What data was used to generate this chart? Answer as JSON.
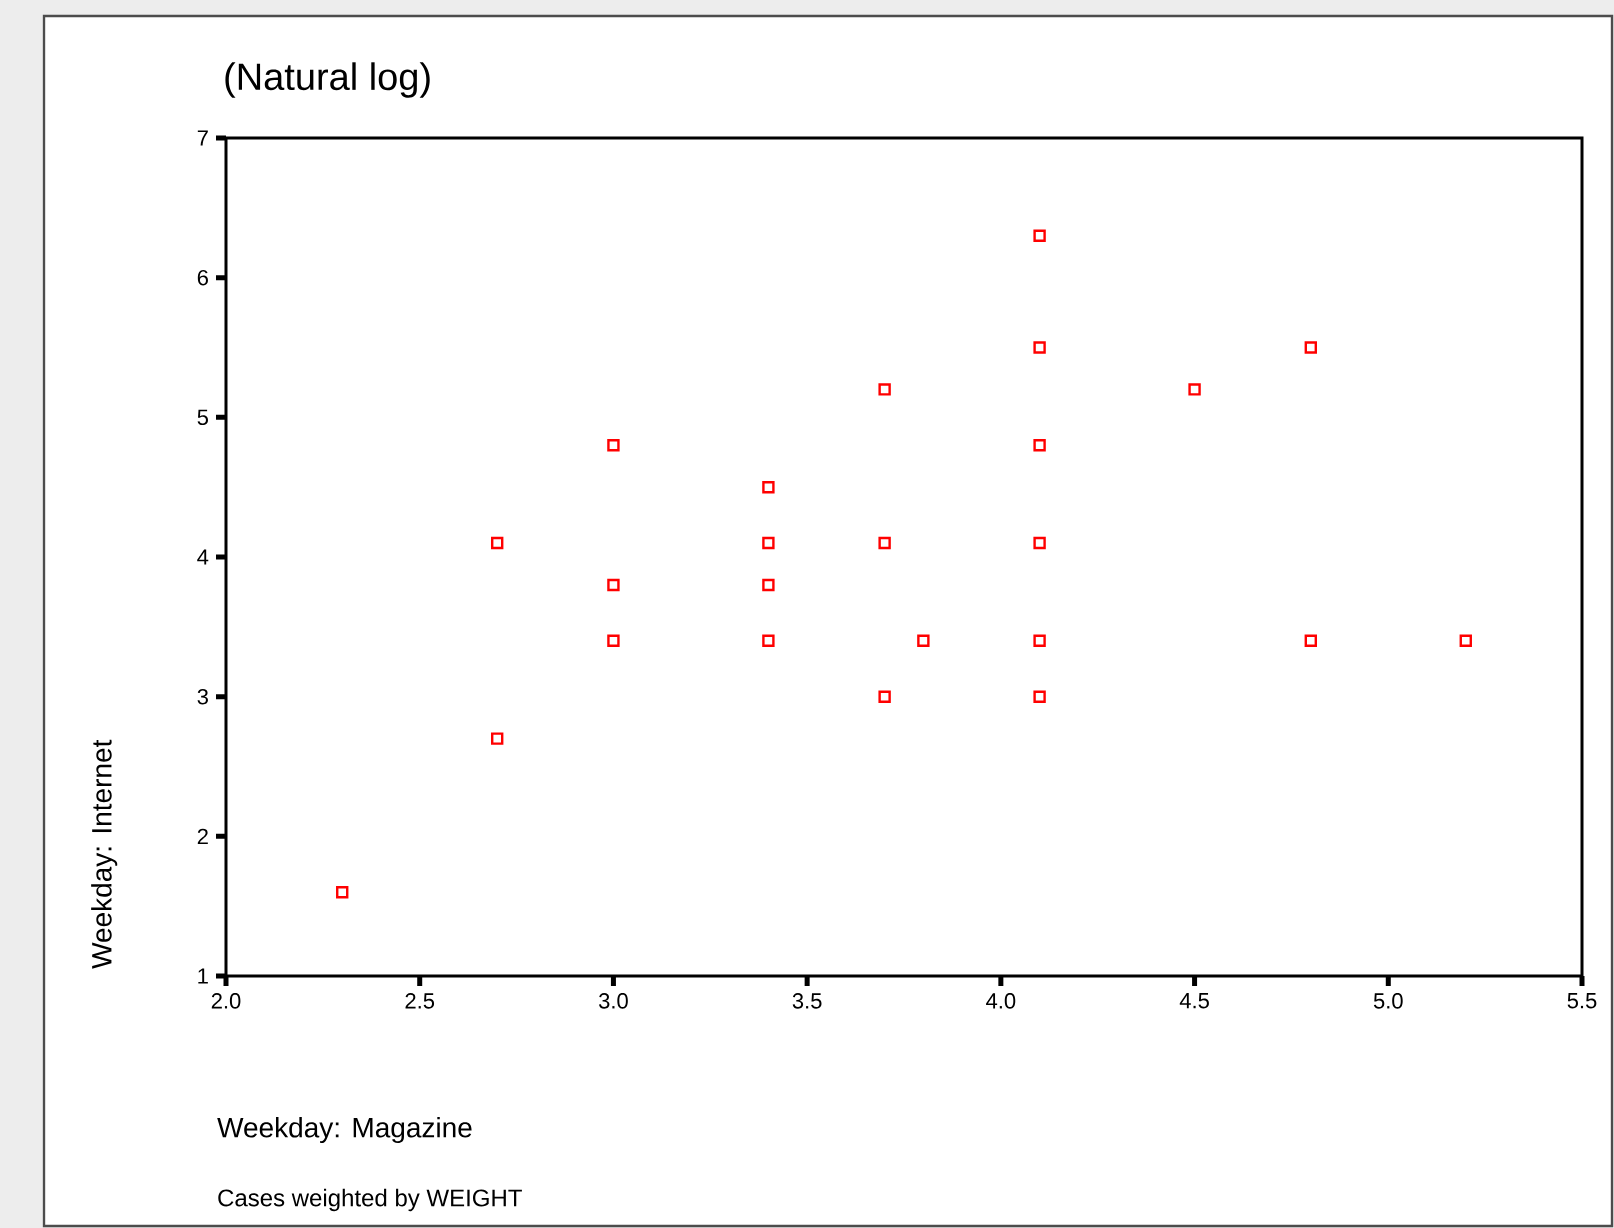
{
  "chart_data": {
    "type": "scatter",
    "title": "(Natural log)",
    "xlabel": "Weekday: Magazine",
    "ylabel": "Weekday: Internet",
    "annotations": [
      "Cases weighted by WEIGHT"
    ],
    "x": [
      2.3,
      2.7,
      2.7,
      3.0,
      3.0,
      3.0,
      3.4,
      3.4,
      3.4,
      3.4,
      3.7,
      3.7,
      3.7,
      3.8,
      4.1,
      4.1,
      4.1,
      4.1,
      4.1,
      4.1,
      4.5,
      4.8,
      4.8,
      5.2
    ],
    "values": [
      1.6,
      4.1,
      2.7,
      4.8,
      3.8,
      3.4,
      4.5,
      4.1,
      3.8,
      3.4,
      5.2,
      4.1,
      3.0,
      3.4,
      6.3,
      5.5,
      4.8,
      4.1,
      3.4,
      3.0,
      5.2,
      5.5,
      3.4,
      3.4
    ],
    "color": "#ff0000",
    "marker": "square",
    "xlim": [
      2.0,
      5.5
    ],
    "ylim": [
      1,
      7
    ],
    "xticks": [
      {
        "value": 2.0,
        "label": "2.0"
      },
      {
        "value": 2.5,
        "label": "2.5"
      },
      {
        "value": 3.0,
        "label": "3.0"
      },
      {
        "value": 3.5,
        "label": "3.5"
      },
      {
        "value": 4.0,
        "label": "4.0"
      },
      {
        "value": 4.5,
        "label": "4.5"
      },
      {
        "value": 5.0,
        "label": "5.0"
      },
      {
        "value": 5.5,
        "label": "5.5"
      }
    ],
    "yticks": [
      1,
      2,
      3,
      4,
      5,
      6,
      7
    ]
  }
}
